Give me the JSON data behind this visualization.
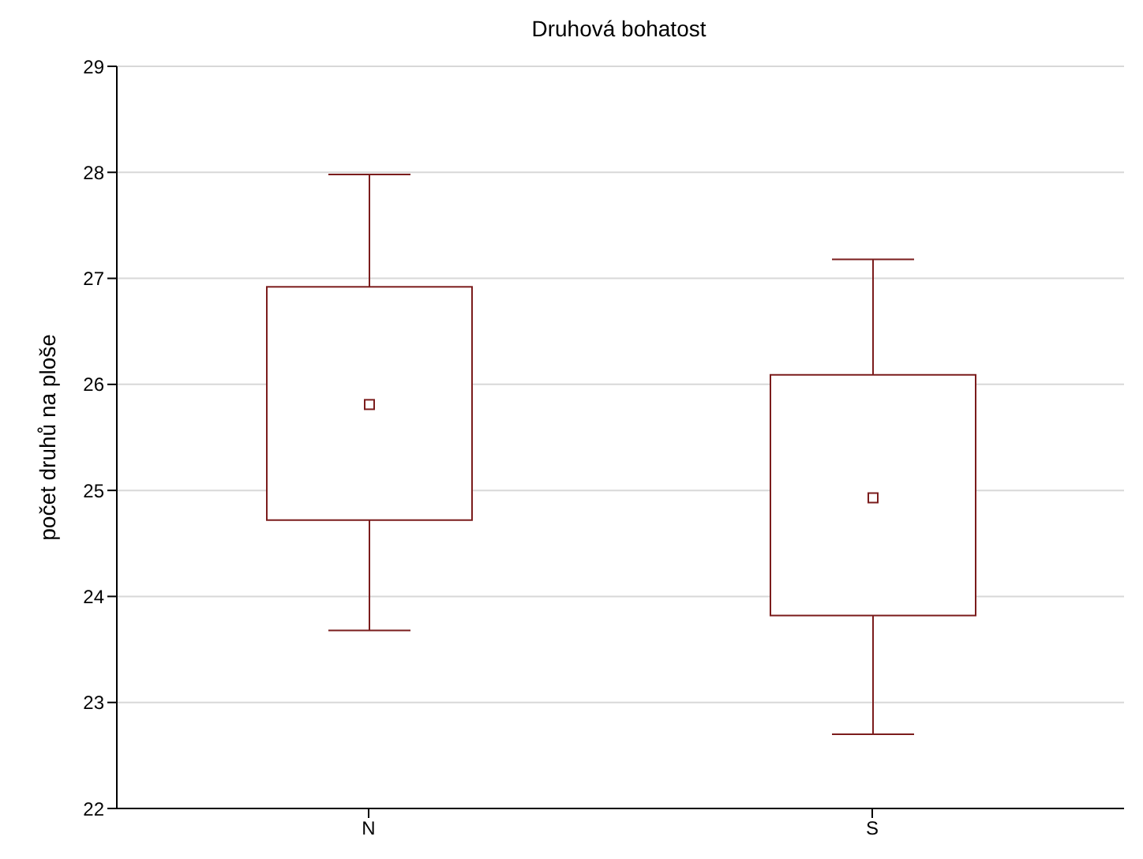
{
  "chart_data": {
    "type": "box",
    "title": "Druhová bohatost",
    "ylabel": "počet druhů na ploše",
    "categories": [
      "N",
      "S"
    ],
    "color": "#7b1c1c",
    "boxes": [
      {
        "low": 23.68,
        "q1": 24.72,
        "median": 25.81,
        "q3": 26.92,
        "high": 27.98
      },
      {
        "low": 22.7,
        "q1": 23.82,
        "median": 24.93,
        "q3": 26.09,
        "high": 27.18
      }
    ],
    "ylim": [
      22,
      29
    ],
    "yticks": [
      22,
      23,
      24,
      25,
      26,
      27,
      28,
      29
    ],
    "grid": "y"
  }
}
